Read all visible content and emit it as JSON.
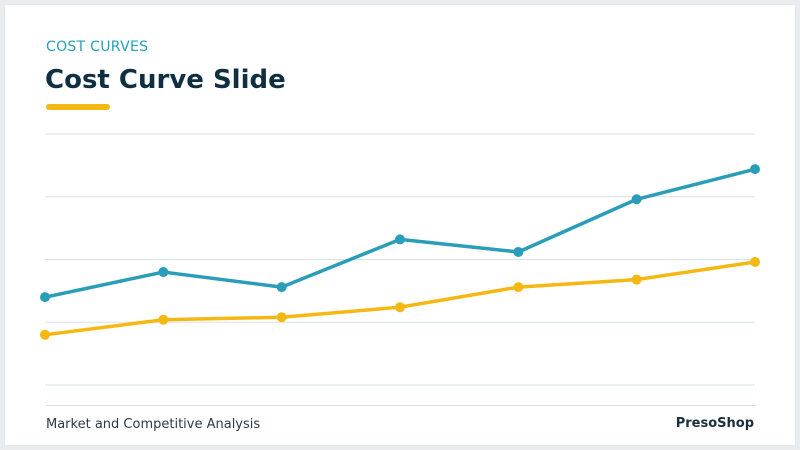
{
  "header": {
    "eyebrow": "COST CURVES",
    "title": "Cost Curve Slide"
  },
  "footer": {
    "left": "Market and Competitive Analysis",
    "right": "PresoShop"
  },
  "colors": {
    "accent": "#f5b712",
    "series_teal": "#2a9db8",
    "series_gold": "#f5b712",
    "title": "#0f2f43",
    "eyebrow": "#22a2bb",
    "grid": "#d9e2e7"
  },
  "chart_data": {
    "type": "line",
    "x": [
      1,
      2,
      3,
      4,
      5,
      6,
      7
    ],
    "ylim": [
      0,
      10
    ],
    "grid": true,
    "series": [
      {
        "values": [
          3.5,
          4.5,
          3.9,
          5.8,
          5.3,
          7.4,
          8.6
        ]
      },
      {
        "values": [
          2.0,
          2.6,
          2.7,
          3.1,
          3.9,
          4.2,
          4.9
        ]
      }
    ]
  }
}
